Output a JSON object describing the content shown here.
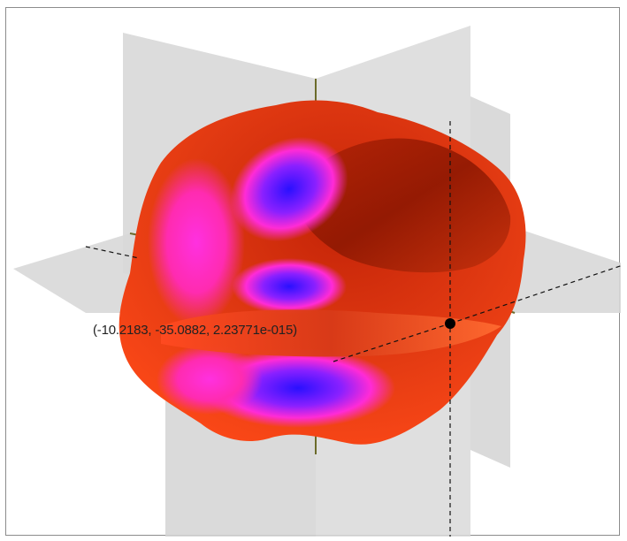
{
  "probe": {
    "readout": "(-10.2183, -35.0882, 2.23771e-015)"
  },
  "colors": {
    "surface_primary": "#e23a12",
    "surface_dark": "#9a1a04",
    "surface_secondary": "#ff2bd6",
    "surface_tertiary": "#2a10ff",
    "slice_plane": "#d6d6d6",
    "axis_line": "#6b6b2a",
    "probe_marker": "#000000"
  },
  "view": {
    "kind": "3d-isosurface-with-slice-planes",
    "slice_planes": [
      "xy",
      "xz",
      "yz"
    ],
    "probe_visible": true
  }
}
